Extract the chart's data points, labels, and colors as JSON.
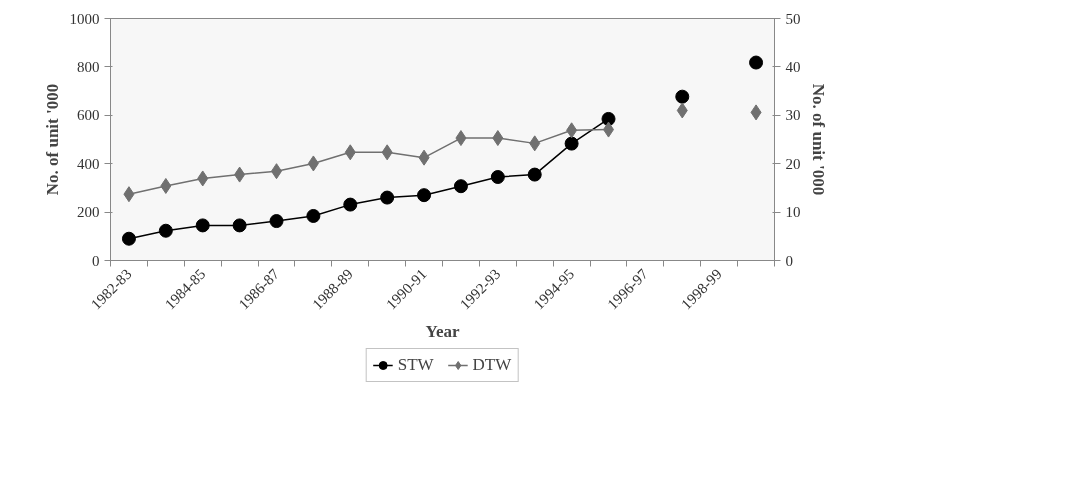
{
  "chart_data": {
    "type": "line",
    "xlabel": "Year",
    "ylabel": "No. of unit '000",
    "y2label": "No. of unit '000",
    "categories": [
      "1982-83",
      null,
      "1984-85",
      null,
      "1986-87",
      null,
      "1988-89",
      null,
      "1990-91",
      null,
      "1992-93",
      null,
      "1994-95",
      null,
      "1996-97",
      null,
      "1998-99",
      null
    ],
    "series": [
      {
        "name": "STW",
        "color": "#000000",
        "marker": "circle",
        "values": [
          90,
          123,
          145,
          145,
          163,
          184,
          231,
          260,
          270,
          307,
          345,
          355,
          483,
          585,
          null,
          677,
          null,
          818
        ]
      },
      {
        "name": "DTW",
        "color": "#707070",
        "marker": "diamond",
        "values": [
          274,
          308,
          339,
          355,
          369,
          401,
          447,
          447,
          425,
          506,
          506,
          484,
          538,
          541,
          null,
          620,
          null,
          612
        ]
      }
    ],
    "ylim": [
      0,
      1000
    ],
    "yticks": [
      0,
      200,
      400,
      600,
      800,
      1000
    ],
    "y2lim": [
      0,
      50
    ],
    "y2ticks": [
      0,
      10,
      20,
      30,
      40,
      50
    ],
    "grid": false,
    "legend": "bottom",
    "line_style": "solid"
  }
}
